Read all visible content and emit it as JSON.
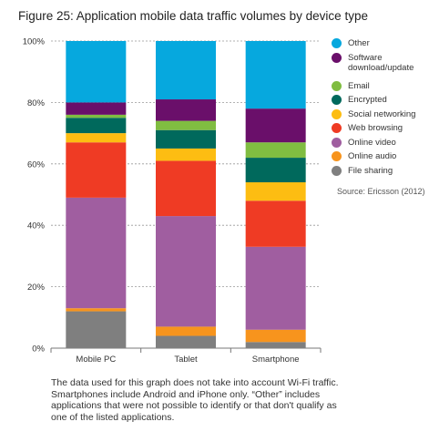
{
  "chart_data": {
    "type": "bar",
    "stacked": true,
    "title": "Figure 25: Application mobile data traffic volumes by device type",
    "categories": [
      "Mobile PC",
      "Tablet",
      "Smartphone"
    ],
    "ylim": [
      0,
      100
    ],
    "yticks": [
      "0%",
      "20%",
      "40%",
      "60%",
      "80%",
      "100%"
    ],
    "grid": true,
    "legend_position": "right",
    "series": [
      {
        "name": "File sharing",
        "color": "#7f7f7f",
        "values": [
          12,
          4,
          2
        ]
      },
      {
        "name": "Online audio",
        "color": "#f7941d",
        "values": [
          1,
          3,
          4
        ]
      },
      {
        "name": "Online video",
        "color": "#a05ea0",
        "values": [
          36,
          36,
          27
        ]
      },
      {
        "name": "Web browsing",
        "color": "#ef3b24",
        "values": [
          18,
          18,
          15
        ]
      },
      {
        "name": "Social networking",
        "color": "#fdbd12",
        "values": [
          3,
          4,
          6
        ]
      },
      {
        "name": "Encrypted",
        "color": "#00695c",
        "values": [
          5,
          6,
          8
        ]
      },
      {
        "name": "Email",
        "color": "#80bd41",
        "values": [
          1,
          3,
          5
        ]
      },
      {
        "name": "Software download/update",
        "color": "#6a0f6a",
        "values": [
          4,
          7,
          11
        ]
      },
      {
        "name": "Other",
        "color": "#06a8de",
        "values": [
          20,
          19,
          22
        ]
      }
    ],
    "legend_order": [
      "Other",
      "Software download/update",
      "Email",
      "Encrypted",
      "Social networking",
      "Web browsing",
      "Online video",
      "Online audio",
      "File sharing"
    ],
    "legend_labels": {
      "Software download/update": [
        "Software",
        "download/update"
      ]
    },
    "source": "Source: Ericsson (2012)"
  },
  "footnote": "The data used for this graph does not take into account Wi-Fi traffic. Smartphones include Android and iPhone only. “Other” includes applications that were not possible to identify or that don't qualify as one of the listed applications."
}
